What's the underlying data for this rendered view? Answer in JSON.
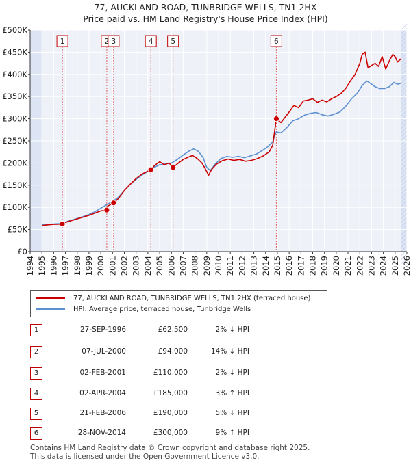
{
  "chart_data": {
    "type": "line",
    "title": "77, AUCKLAND ROAD, TUNBRIDGE WELLS, TN1 2HX",
    "subtitle": "Price paid vs. HM Land Registry's House Price Index (HPI)",
    "xlabel": "",
    "ylabel": "",
    "xlim": [
      1994,
      2026
    ],
    "ylim": [
      0,
      500000
    ],
    "y_ticks": [
      {
        "value": 0,
        "label": "£0"
      },
      {
        "value": 50000,
        "label": "£50K"
      },
      {
        "value": 100000,
        "label": "£100K"
      },
      {
        "value": 150000,
        "label": "£150K"
      },
      {
        "value": 200000,
        "label": "£200K"
      },
      {
        "value": 250000,
        "label": "£250K"
      },
      {
        "value": 300000,
        "label": "£300K"
      },
      {
        "value": 350000,
        "label": "£350K"
      },
      {
        "value": 400000,
        "label": "£400K"
      },
      {
        "value": 450000,
        "label": "£450K"
      },
      {
        "value": 500000,
        "label": "£500K"
      }
    ],
    "x_ticks": [
      "1994",
      "1995",
      "1996",
      "1997",
      "1998",
      "1999",
      "2000",
      "2001",
      "2002",
      "2003",
      "2004",
      "2005",
      "2006",
      "2007",
      "2008",
      "2009",
      "2010",
      "2011",
      "2012",
      "2013",
      "2014",
      "2015",
      "2016",
      "2017",
      "2018",
      "2019",
      "2020",
      "2021",
      "2022",
      "2023",
      "2024",
      "2025",
      "2026"
    ],
    "grid": true,
    "data_start": 1995.0,
    "data_end": 2025.5,
    "series": [
      {
        "name": "77, AUCKLAND ROAD, TUNBRIDGE WELLS, TN1 2HX (terraced house)",
        "color": "#cc0000",
        "points": [
          [
            1995.0,
            59000
          ],
          [
            1995.5,
            60500
          ],
          [
            1996.0,
            61500
          ],
          [
            1996.5,
            62000
          ],
          [
            1996.74,
            62500
          ],
          [
            1997.0,
            66000
          ],
          [
            1997.5,
            70000
          ],
          [
            1998.0,
            74000
          ],
          [
            1998.5,
            78000
          ],
          [
            1999.0,
            82000
          ],
          [
            1999.5,
            87000
          ],
          [
            2000.0,
            92000
          ],
          [
            2000.51,
            94000
          ],
          [
            2000.6,
            103000
          ],
          [
            2001.09,
            110000
          ],
          [
            2001.5,
            120000
          ],
          [
            2002.0,
            138000
          ],
          [
            2002.5,
            152000
          ],
          [
            2003.0,
            165000
          ],
          [
            2003.5,
            175000
          ],
          [
            2004.25,
            185000
          ],
          [
            2004.6,
            195000
          ],
          [
            2005.0,
            203000
          ],
          [
            2005.4,
            196000
          ],
          [
            2005.8,
            200000
          ],
          [
            2006.14,
            190000
          ],
          [
            2006.5,
            198000
          ],
          [
            2007.0,
            208000
          ],
          [
            2007.5,
            214000
          ],
          [
            2007.8,
            217000
          ],
          [
            2008.2,
            210000
          ],
          [
            2008.6,
            200000
          ],
          [
            2008.9,
            186000
          ],
          [
            2009.15,
            172000
          ],
          [
            2009.4,
            185000
          ],
          [
            2009.8,
            197000
          ],
          [
            2010.3,
            205000
          ],
          [
            2010.8,
            209000
          ],
          [
            2011.3,
            206000
          ],
          [
            2011.8,
            208000
          ],
          [
            2012.3,
            204000
          ],
          [
            2012.8,
            206000
          ],
          [
            2013.3,
            210000
          ],
          [
            2013.8,
            216000
          ],
          [
            2014.3,
            225000
          ],
          [
            2014.6,
            240000
          ],
          [
            2014.91,
            300000
          ],
          [
            2015.3,
            291000
          ],
          [
            2015.7,
            305000
          ],
          [
            2016.0,
            315000
          ],
          [
            2016.4,
            330000
          ],
          [
            2016.8,
            325000
          ],
          [
            2017.2,
            340000
          ],
          [
            2017.6,
            342000
          ],
          [
            2018.0,
            345000
          ],
          [
            2018.4,
            337000
          ],
          [
            2018.8,
            342000
          ],
          [
            2019.2,
            338000
          ],
          [
            2019.6,
            345000
          ],
          [
            2020.0,
            350000
          ],
          [
            2020.4,
            357000
          ],
          [
            2020.8,
            368000
          ],
          [
            2021.2,
            385000
          ],
          [
            2021.6,
            400000
          ],
          [
            2022.0,
            425000
          ],
          [
            2022.2,
            445000
          ],
          [
            2022.45,
            450000
          ],
          [
            2022.7,
            415000
          ],
          [
            2023.0,
            420000
          ],
          [
            2023.3,
            425000
          ],
          [
            2023.6,
            418000
          ],
          [
            2023.9,
            440000
          ],
          [
            2024.2,
            412000
          ],
          [
            2024.5,
            430000
          ],
          [
            2024.8,
            445000
          ],
          [
            2025.0,
            440000
          ],
          [
            2025.2,
            428000
          ],
          [
            2025.5,
            435000
          ]
        ]
      },
      {
        "name": "HPI: Average price, terraced house, Tunbridge Wells",
        "color": "#5b8fd0",
        "points": [
          [
            1995.0,
            60000
          ],
          [
            1995.5,
            61500
          ],
          [
            1996.0,
            62500
          ],
          [
            1996.5,
            63500
          ],
          [
            1997.0,
            67000
          ],
          [
            1997.5,
            71000
          ],
          [
            1998.0,
            75000
          ],
          [
            1998.5,
            79000
          ],
          [
            1999.0,
            84000
          ],
          [
            1999.5,
            90000
          ],
          [
            2000.0,
            98000
          ],
          [
            2000.5,
            106000
          ],
          [
            2001.0,
            113000
          ],
          [
            2001.5,
            123000
          ],
          [
            2002.0,
            138000
          ],
          [
            2002.5,
            152000
          ],
          [
            2003.0,
            163000
          ],
          [
            2003.5,
            173000
          ],
          [
            2004.0,
            181000
          ],
          [
            2004.5,
            190000
          ],
          [
            2005.0,
            196000
          ],
          [
            2005.5,
            198000
          ],
          [
            2006.0,
            200000
          ],
          [
            2006.5,
            208000
          ],
          [
            2007.0,
            218000
          ],
          [
            2007.5,
            227000
          ],
          [
            2007.9,
            232000
          ],
          [
            2008.3,
            226000
          ],
          [
            2008.7,
            212000
          ],
          [
            2009.0,
            190000
          ],
          [
            2009.3,
            183000
          ],
          [
            2009.7,
            197000
          ],
          [
            2010.2,
            210000
          ],
          [
            2010.7,
            215000
          ],
          [
            2011.2,
            213000
          ],
          [
            2011.7,
            215000
          ],
          [
            2012.2,
            212000
          ],
          [
            2012.7,
            216000
          ],
          [
            2013.2,
            220000
          ],
          [
            2013.7,
            228000
          ],
          [
            2014.2,
            237000
          ],
          [
            2014.6,
            248000
          ],
          [
            2014.9,
            270000
          ],
          [
            2015.3,
            268000
          ],
          [
            2015.8,
            280000
          ],
          [
            2016.3,
            295000
          ],
          [
            2016.8,
            300000
          ],
          [
            2017.3,
            308000
          ],
          [
            2017.8,
            312000
          ],
          [
            2018.3,
            314000
          ],
          [
            2018.8,
            309000
          ],
          [
            2019.3,
            306000
          ],
          [
            2019.8,
            310000
          ],
          [
            2020.3,
            315000
          ],
          [
            2020.8,
            328000
          ],
          [
            2021.3,
            345000
          ],
          [
            2021.8,
            358000
          ],
          [
            2022.2,
            375000
          ],
          [
            2022.6,
            385000
          ],
          [
            2022.9,
            380000
          ],
          [
            2023.3,
            372000
          ],
          [
            2023.7,
            368000
          ],
          [
            2024.1,
            368000
          ],
          [
            2024.5,
            372000
          ],
          [
            2024.9,
            382000
          ],
          [
            2025.2,
            378000
          ],
          [
            2025.5,
            380000
          ]
        ]
      }
    ],
    "sales": [
      {
        "id": "1",
        "year": 1996.74,
        "price": 62500
      },
      {
        "id": "2",
        "year": 2000.51,
        "price": 94000
      },
      {
        "id": "3",
        "year": 2001.09,
        "price": 110000
      },
      {
        "id": "4",
        "year": 2004.25,
        "price": 185000
      },
      {
        "id": "5",
        "year": 2006.14,
        "price": 190000
      },
      {
        "id": "6",
        "year": 2014.91,
        "price": 300000
      }
    ],
    "colors": {
      "background": "#eef1f8",
      "shaded_band": "#dde4f3",
      "grid": "#ffffff",
      "axis": "#333333",
      "marker_line": "#e06060",
      "badge_border": "#c00000"
    }
  },
  "legend": [
    {
      "label": "77, AUCKLAND ROAD, TUNBRIDGE WELLS, TN1 2HX (terraced house)",
      "color": "#cc0000"
    },
    {
      "label": "HPI: Average price, terraced house, Tunbridge Wells",
      "color": "#5b8fd0"
    }
  ],
  "transactions": [
    {
      "id": "1",
      "date": "27-SEP-1996",
      "price": "£62,500",
      "hpi": "2% ↓ HPI"
    },
    {
      "id": "2",
      "date": "07-JUL-2000",
      "price": "£94,000",
      "hpi": "14% ↓ HPI"
    },
    {
      "id": "3",
      "date": "02-FEB-2001",
      "price": "£110,000",
      "hpi": "2% ↓ HPI"
    },
    {
      "id": "4",
      "date": "02-APR-2004",
      "price": "£185,000",
      "hpi": "3% ↑ HPI"
    },
    {
      "id": "5",
      "date": "21-FEB-2006",
      "price": "£190,000",
      "hpi": "5% ↓ HPI"
    },
    {
      "id": "6",
      "date": "28-NOV-2014",
      "price": "£300,000",
      "hpi": "9% ↑ HPI"
    }
  ],
  "footer": {
    "line1": "Contains HM Land Registry data © Crown copyright and database right 2025.",
    "line2": "This data is licensed under the Open Government Licence v3.0."
  }
}
